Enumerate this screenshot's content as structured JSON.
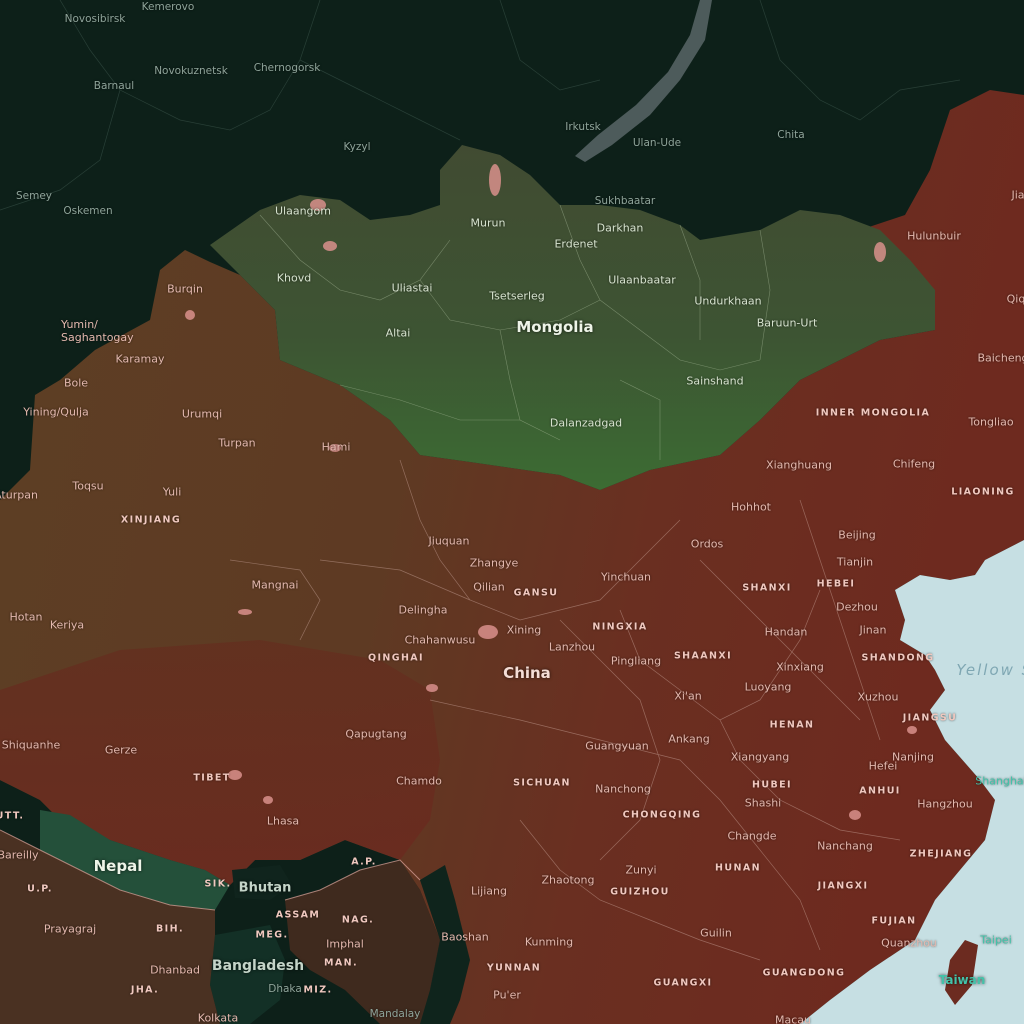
{
  "map": {
    "colors": {
      "background": "#0c1f18",
      "china": "#6b2c20",
      "china_west": "#5b3a23",
      "mongolia": "#3f4d31",
      "mongolia_south": "#3e6e33",
      "sea": "#c4dfe2",
      "nepal": "#25513b"
    },
    "countries": [
      {
        "id": "china",
        "name": "China"
      },
      {
        "id": "mongolia",
        "name": "Mongolia"
      },
      {
        "id": "nepal",
        "name": "Nepal"
      },
      {
        "id": "bhutan",
        "name": "Bhutan"
      },
      {
        "id": "bangladesh",
        "name": "Bangladesh"
      },
      {
        "id": "taiwan",
        "name": "Taiwan"
      }
    ],
    "seas": [
      {
        "id": "yellow-sea",
        "name": "Yellow Sea"
      }
    ],
    "provinces": [
      {
        "id": "inner-mongolia",
        "name": "INNER MONGOLIA"
      },
      {
        "id": "liaoning",
        "name": "LIAONING"
      },
      {
        "id": "xinjiang",
        "name": "XINJIANG"
      },
      {
        "id": "gansu",
        "name": "GANSU"
      },
      {
        "id": "ningxia",
        "name": "NINGXIA"
      },
      {
        "id": "shanxi",
        "name": "SHANXI"
      },
      {
        "id": "hebei",
        "name": "HEBEI"
      },
      {
        "id": "shandong",
        "name": "SHANDONG"
      },
      {
        "id": "qinghai",
        "name": "QINGHAI"
      },
      {
        "id": "shaanxi",
        "name": "SHAANXI"
      },
      {
        "id": "henan",
        "name": "HENAN"
      },
      {
        "id": "jiangsu",
        "name": "JIANGSU"
      },
      {
        "id": "tibet",
        "name": "TIBET"
      },
      {
        "id": "sichuan",
        "name": "SICHUAN"
      },
      {
        "id": "hubei",
        "name": "HUBEI"
      },
      {
        "id": "anhui",
        "name": "ANHUI"
      },
      {
        "id": "chongqing",
        "name": "CHONGQING"
      },
      {
        "id": "zhejiang",
        "name": "ZHEJIANG"
      },
      {
        "id": "hunan",
        "name": "HUNAN"
      },
      {
        "id": "jiangxi",
        "name": "JIANGXI"
      },
      {
        "id": "guizhou",
        "name": "GUIZHOU"
      },
      {
        "id": "fujian",
        "name": "FUJIAN"
      },
      {
        "id": "yunnan",
        "name": "YUNNAN"
      },
      {
        "id": "guangxi",
        "name": "GUANGXI"
      },
      {
        "id": "guangdong",
        "name": "GUANGDONG"
      },
      {
        "id": "uttarakhand",
        "name": "UTT."
      },
      {
        "id": "uttar-pradesh",
        "name": "U.P."
      },
      {
        "id": "bihar",
        "name": "BIH."
      },
      {
        "id": "jharkhand",
        "name": "JHA."
      },
      {
        "id": "sikkim",
        "name": "SIK."
      },
      {
        "id": "assam",
        "name": "ASSAM"
      },
      {
        "id": "arunachal",
        "name": "A.P."
      },
      {
        "id": "nagaland",
        "name": "NAG."
      },
      {
        "id": "meghalaya",
        "name": "MEG."
      },
      {
        "id": "manipur",
        "name": "MAN."
      },
      {
        "id": "mizoram",
        "name": "MIZ."
      }
    ],
    "cities": {
      "mongolia": [
        "Ulaangom",
        "Murun",
        "Darkhan",
        "Erdenet",
        "Khovd",
        "Uliastai",
        "Tsetserleg",
        "Ulaanbaatar",
        "Undurkhaan",
        "Baruun-Urt",
        "Altai",
        "Sainshand",
        "Dalanzadgad"
      ],
      "russia": [
        "Novosibirsk",
        "Kemerovo",
        "Novokuznetsk",
        "Chernogorsk",
        "Barnaul",
        "Kyzyl",
        "Irkutsk",
        "Ulan-Ude",
        "Chita",
        "Sukhbaatar",
        "Semey",
        "Oskemen"
      ],
      "kazakhstan": [
        "Yining/Qulja",
        "Bole",
        "Karamay",
        "Yumin/ Saghantogay",
        "Burqin"
      ],
      "china": [
        "Hulunbuir",
        "Jia",
        "Qiq",
        "Baicheng",
        "Tongliao",
        "Chifeng",
        "Xianghuang",
        "Hohhot",
        "Ordos",
        "Beijing",
        "Tianjin",
        "Dezhou",
        "Jinan",
        "Handan",
        "Xinxiang",
        "Luoyang",
        "Xuzhou",
        "Nanjing",
        "Shanghai",
        "Hangzhou",
        "Hefei",
        "Nanchang",
        "Changde",
        "Shashi",
        "Xiangyang",
        "Ankang",
        "Guangyuan",
        "Nanchong",
        "Zunyi",
        "Guilin",
        "Quanzhou",
        "Taipei",
        "Kunming",
        "Zhaotong",
        "Lijiang",
        "Baoshan",
        "Pu'er",
        "Macau",
        "Xi'an",
        "Pingliang",
        "Yinchuan",
        "Lanzhou",
        "Xining",
        "Qilian",
        "Zhangye",
        "Jiuquan",
        "Delingha",
        "Chahanwusu",
        "Mangnai",
        "Hotan",
        "Keriya",
        "Turpan",
        "Hami",
        "Urumqi",
        "Yuli",
        "Toqsu",
        "Aturpan",
        "Qapugtang",
        "Chamdo",
        "Lhasa",
        "Gerze",
        "Shiquanhe"
      ],
      "south_asia": [
        "Bareilly",
        "Prayagraj",
        "Dhanbad",
        "Kolkata",
        "Dhaka",
        "Imphal",
        "Mandalay"
      ]
    }
  }
}
